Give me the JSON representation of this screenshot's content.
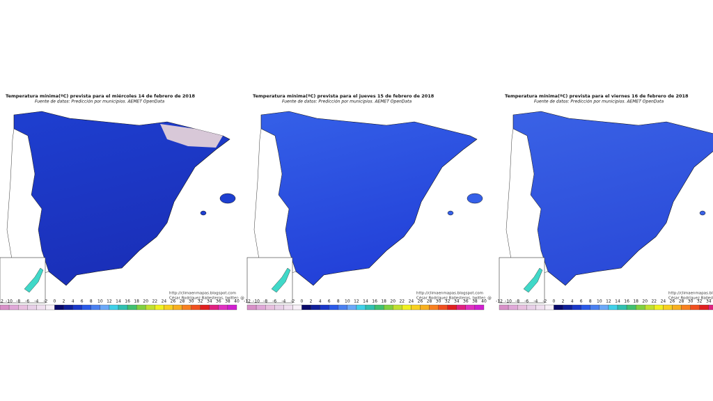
{
  "panels": [
    {
      "title": "Temperatura mínima(ºC) prevista para el miércoles 14 de febrero de 2018",
      "subtitle": "Fuente de datos: Predicción por municipios. AEMET OpenData",
      "credit_url": "http://climaenmapas.blogspot.com",
      "credit_author": "César Rodríguez Ballesteros, twitter: @"
    },
    {
      "title": "Temperatura mínima(ºC) prevista para el jueves 15 de febrero de 2018",
      "subtitle": "Fuente de datos: Predicción por municipios. AEMET OpenData",
      "credit_url": "http://climaenmapas.blogspot.com",
      "credit_author": "César Rodríguez Ballesteros, twitter: @"
    },
    {
      "title": "Temperatura mínima(ºC) prevista para el viernes 16 de febrero de 2018",
      "subtitle": "Fuente de datos: Predicción por municipios. AEMET OpenData",
      "credit_url": "http://climaenmapas.blogspot.com",
      "credit_author": "César Rodríguez Ballesteros, twitter: @"
    }
  ],
  "legend": {
    "labels": [
      "-12",
      "-10",
      "-8",
      "-6",
      "-4",
      "-2",
      "0",
      "2",
      "4",
      "6",
      "8",
      "10",
      "12",
      "14",
      "16",
      "18",
      "20",
      "22",
      "24",
      "26",
      "28",
      "30",
      "32",
      "34",
      "36",
      "38",
      "40"
    ]
  }
}
